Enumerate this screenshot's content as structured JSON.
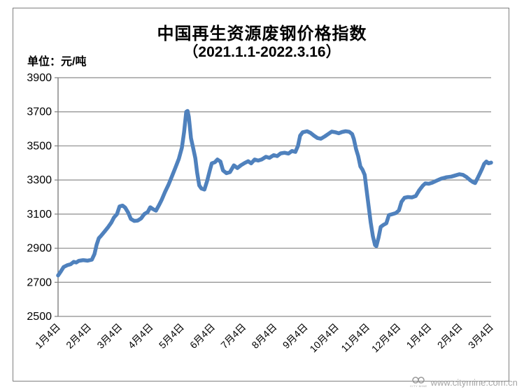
{
  "chart": {
    "title": "中国再生资源废钢价格指数",
    "subtitle": "（2021.1.1-2022.3.16）",
    "unit_label": "单位：元/吨"
  },
  "watermark": {
    "url": "www.citymine.com.cn",
    "logo_text": "CITY MINE"
  },
  "chart_data": {
    "type": "line",
    "title": "中国再生资源废钢价格指数（2021.1.1-2022.3.16）",
    "xlabel": "",
    "ylabel": "元/吨",
    "ylim": [
      2500,
      3900
    ],
    "y_ticks": [
      2500,
      2700,
      2900,
      3100,
      3300,
      3500,
      3700,
      3900
    ],
    "x_tick_labels": [
      "1月4日",
      "2月4日",
      "3月4日",
      "4月4日",
      "5月4日",
      "6月4日",
      "7月4日",
      "8月4日",
      "9月4日",
      "10月4日",
      "11月4日",
      "12月4日",
      "1月4日",
      "2月4日",
      "3月4日"
    ],
    "grid": "horizontal",
    "legend": "none",
    "line_color": "#4F81BD",
    "gridline_color": "#8c8c8c",
    "axis_color": "#7f7f7f",
    "series": [
      {
        "name": "废钢价格指数",
        "points": [
          [
            0.0,
            2740
          ],
          [
            0.006,
            2762
          ],
          [
            0.013,
            2790
          ],
          [
            0.021,
            2800
          ],
          [
            0.029,
            2806
          ],
          [
            0.036,
            2820
          ],
          [
            0.042,
            2816
          ],
          [
            0.048,
            2826
          ],
          [
            0.058,
            2830
          ],
          [
            0.068,
            2827
          ],
          [
            0.078,
            2833
          ],
          [
            0.084,
            2865
          ],
          [
            0.089,
            2920
          ],
          [
            0.094,
            2958
          ],
          [
            0.1,
            2975
          ],
          [
            0.108,
            3000
          ],
          [
            0.116,
            3025
          ],
          [
            0.123,
            3050
          ],
          [
            0.129,
            3080
          ],
          [
            0.136,
            3100
          ],
          [
            0.142,
            3145
          ],
          [
            0.149,
            3150
          ],
          [
            0.155,
            3138
          ],
          [
            0.162,
            3108
          ],
          [
            0.168,
            3072
          ],
          [
            0.176,
            3060
          ],
          [
            0.184,
            3062
          ],
          [
            0.192,
            3075
          ],
          [
            0.199,
            3100
          ],
          [
            0.207,
            3112
          ],
          [
            0.213,
            3140
          ],
          [
            0.22,
            3128
          ],
          [
            0.226,
            3120
          ],
          [
            0.233,
            3152
          ],
          [
            0.239,
            3182
          ],
          [
            0.247,
            3230
          ],
          [
            0.255,
            3272
          ],
          [
            0.263,
            3322
          ],
          [
            0.271,
            3372
          ],
          [
            0.279,
            3425
          ],
          [
            0.286,
            3490
          ],
          [
            0.291,
            3580
          ],
          [
            0.296,
            3700
          ],
          [
            0.299,
            3705
          ],
          [
            0.302,
            3670
          ],
          [
            0.307,
            3545
          ],
          [
            0.312,
            3488
          ],
          [
            0.317,
            3428
          ],
          [
            0.321,
            3345
          ],
          [
            0.326,
            3268
          ],
          [
            0.331,
            3250
          ],
          [
            0.338,
            3244
          ],
          [
            0.344,
            3292
          ],
          [
            0.351,
            3362
          ],
          [
            0.355,
            3398
          ],
          [
            0.362,
            3404
          ],
          [
            0.368,
            3420
          ],
          [
            0.375,
            3408
          ],
          [
            0.381,
            3356
          ],
          [
            0.389,
            3340
          ],
          [
            0.397,
            3346
          ],
          [
            0.406,
            3386
          ],
          [
            0.414,
            3370
          ],
          [
            0.422,
            3386
          ],
          [
            0.431,
            3400
          ],
          [
            0.439,
            3410
          ],
          [
            0.446,
            3398
          ],
          [
            0.454,
            3420
          ],
          [
            0.462,
            3414
          ],
          [
            0.47,
            3420
          ],
          [
            0.48,
            3436
          ],
          [
            0.488,
            3430
          ],
          [
            0.498,
            3446
          ],
          [
            0.506,
            3440
          ],
          [
            0.514,
            3456
          ],
          [
            0.523,
            3460
          ],
          [
            0.532,
            3455
          ],
          [
            0.54,
            3470
          ],
          [
            0.548,
            3465
          ],
          [
            0.554,
            3500
          ],
          [
            0.559,
            3560
          ],
          [
            0.565,
            3580
          ],
          [
            0.575,
            3586
          ],
          [
            0.583,
            3576
          ],
          [
            0.591,
            3560
          ],
          [
            0.599,
            3546
          ],
          [
            0.607,
            3542
          ],
          [
            0.616,
            3556
          ],
          [
            0.624,
            3570
          ],
          [
            0.632,
            3584
          ],
          [
            0.64,
            3580
          ],
          [
            0.648,
            3574
          ],
          [
            0.656,
            3582
          ],
          [
            0.664,
            3586
          ],
          [
            0.672,
            3583
          ],
          [
            0.679,
            3570
          ],
          [
            0.683,
            3540
          ],
          [
            0.688,
            3482
          ],
          [
            0.693,
            3440
          ],
          [
            0.698,
            3380
          ],
          [
            0.703,
            3360
          ],
          [
            0.708,
            3330
          ],
          [
            0.712,
            3250
          ],
          [
            0.717,
            3150
          ],
          [
            0.722,
            3050
          ],
          [
            0.727,
            2970
          ],
          [
            0.732,
            2918
          ],
          [
            0.735,
            2912
          ],
          [
            0.74,
            2962
          ],
          [
            0.745,
            3025
          ],
          [
            0.751,
            3036
          ],
          [
            0.758,
            3046
          ],
          [
            0.764,
            3094
          ],
          [
            0.772,
            3100
          ],
          [
            0.78,
            3106
          ],
          [
            0.787,
            3122
          ],
          [
            0.793,
            3172
          ],
          [
            0.8,
            3196
          ],
          [
            0.808,
            3200
          ],
          [
            0.817,
            3198
          ],
          [
            0.826,
            3206
          ],
          [
            0.834,
            3240
          ],
          [
            0.842,
            3266
          ],
          [
            0.848,
            3280
          ],
          [
            0.856,
            3278
          ],
          [
            0.864,
            3284
          ],
          [
            0.874,
            3296
          ],
          [
            0.885,
            3308
          ],
          [
            0.897,
            3316
          ],
          [
            0.908,
            3320
          ],
          [
            0.919,
            3328
          ],
          [
            0.927,
            3334
          ],
          [
            0.935,
            3330
          ],
          [
            0.943,
            3318
          ],
          [
            0.951,
            3300
          ],
          [
            0.958,
            3288
          ],
          [
            0.963,
            3282
          ],
          [
            0.969,
            3312
          ],
          [
            0.974,
            3338
          ],
          [
            0.979,
            3365
          ],
          [
            0.984,
            3395
          ],
          [
            0.989,
            3408
          ],
          [
            0.994,
            3398
          ],
          [
            1.0,
            3402
          ]
        ]
      }
    ]
  }
}
